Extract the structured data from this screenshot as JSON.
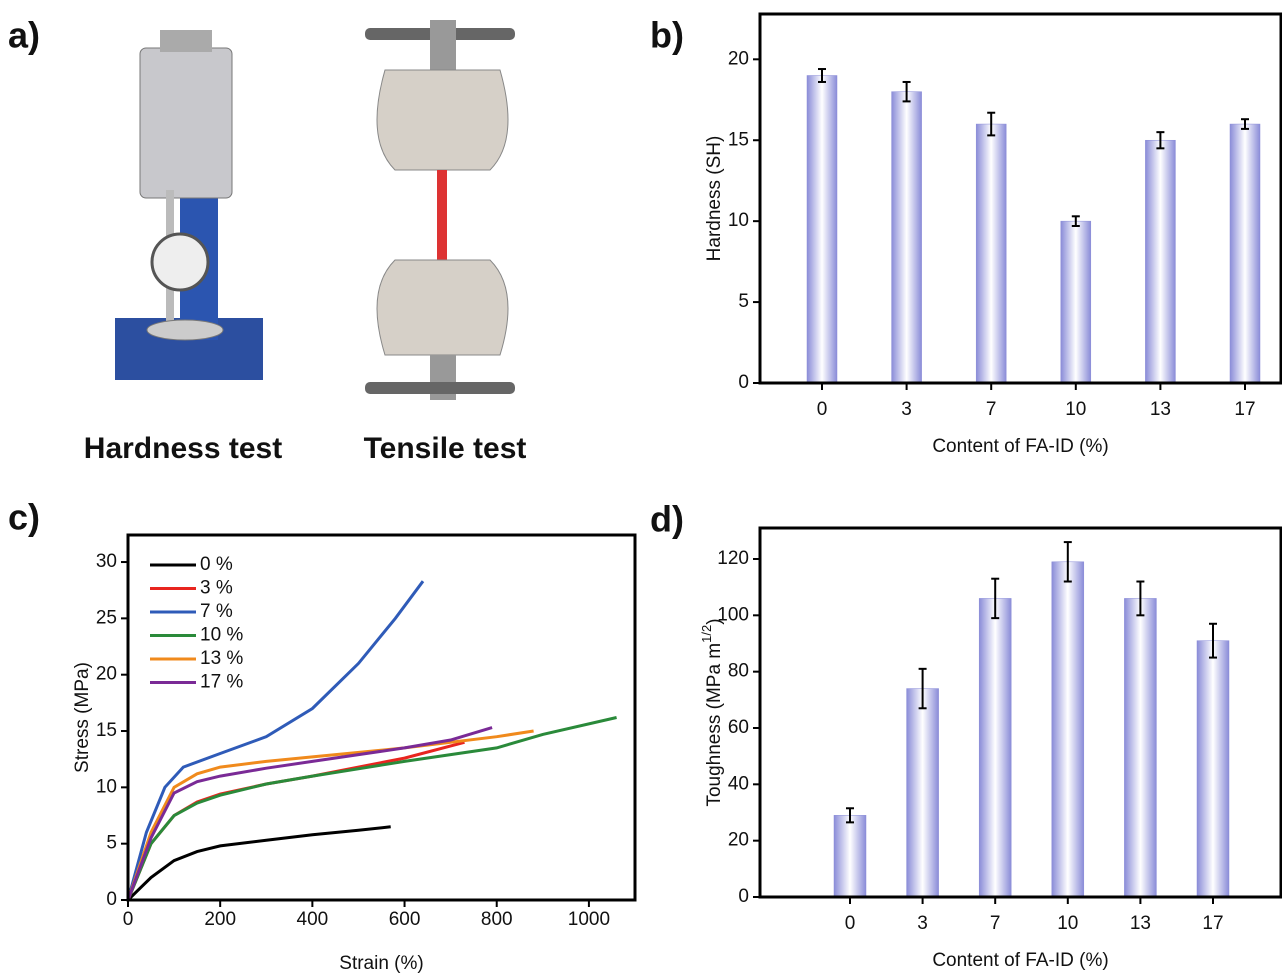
{
  "panel_a": {
    "label": "a)",
    "captions": [
      "Hardness test",
      "Tensile test"
    ]
  },
  "chart_data": [
    {
      "type": "bar",
      "label": "b)",
      "categories": [
        "0",
        "3",
        "7",
        "10",
        "13",
        "17"
      ],
      "values": [
        19,
        18,
        16,
        10,
        15,
        16
      ],
      "errors": [
        0.4,
        0.6,
        0.7,
        0.3,
        0.5,
        0.3
      ],
      "color": "#8a8cd8",
      "ylim": [
        0,
        22.8
      ],
      "yticks": [
        0,
        5,
        10,
        15,
        20
      ],
      "xlabel": "Content of FA-ID (%)",
      "ylabel": "Hardness (SH)"
    },
    {
      "type": "line",
      "label": "c)",
      "xlim": [
        0,
        1100
      ],
      "ylim": [
        0,
        32.4
      ],
      "xticks": [
        0,
        200,
        400,
        600,
        800,
        1000
      ],
      "yticks": [
        0,
        5,
        10,
        15,
        20,
        25,
        30
      ],
      "xlabel": "Strain (%)",
      "ylabel": "Stress (MPa)",
      "legend": "upper left",
      "series": [
        {
          "name": "0 %",
          "color": "#000000",
          "x": [
            0,
            50,
            100,
            150,
            200,
            300,
            400,
            500,
            570
          ],
          "values": [
            0,
            2,
            3.5,
            4.3,
            4.8,
            5.3,
            5.8,
            6.2,
            6.5
          ]
        },
        {
          "name": "3 %",
          "color": "#e8251f",
          "x": [
            0,
            50,
            100,
            150,
            200,
            300,
            400,
            500,
            600,
            730
          ],
          "values": [
            0,
            5,
            7.5,
            8.7,
            9.4,
            10.3,
            11,
            11.8,
            12.6,
            14
          ]
        },
        {
          "name": "7 %",
          "color": "#2f5bb8",
          "x": [
            0,
            40,
            80,
            120,
            200,
            300,
            400,
            500,
            580,
            640
          ],
          "values": [
            0,
            6,
            10,
            11.8,
            13,
            14.5,
            17,
            21,
            25,
            28.3
          ]
        },
        {
          "name": "10 %",
          "color": "#2a8a3a",
          "x": [
            0,
            50,
            100,
            150,
            200,
            300,
            400,
            600,
            800,
            900,
            1060
          ],
          "values": [
            0,
            5,
            7.5,
            8.6,
            9.3,
            10.3,
            11,
            12.3,
            13.5,
            14.7,
            16.2
          ]
        },
        {
          "name": "13 %",
          "color": "#f08a1c",
          "x": [
            0,
            50,
            100,
            150,
            200,
            300,
            400,
            600,
            800,
            880
          ],
          "values": [
            0,
            6,
            10,
            11.2,
            11.8,
            12.3,
            12.7,
            13.5,
            14.5,
            15
          ]
        },
        {
          "name": "17 %",
          "color": "#7a2a96",
          "x": [
            0,
            50,
            100,
            150,
            200,
            300,
            400,
            600,
            700,
            790
          ],
          "values": [
            0,
            5.5,
            9.5,
            10.5,
            11,
            11.7,
            12.3,
            13.5,
            14.2,
            15.3
          ]
        }
      ]
    },
    {
      "type": "bar",
      "label": "d)",
      "categories": [
        "0",
        "3",
        "7",
        "10",
        "13",
        "17"
      ],
      "values": [
        29,
        74,
        106,
        119,
        106,
        91
      ],
      "errors": [
        2.5,
        7,
        7,
        7,
        6,
        6
      ],
      "color": "#8a8cd8",
      "ylim": [
        0,
        131
      ],
      "yticks": [
        0,
        20,
        40,
        60,
        80,
        100,
        120
      ],
      "xlabel": "Content of FA-ID (%)",
      "ylabel": "Toughness (MPa m",
      "ylabel_sup": "1/2",
      "ylabel_end": ")"
    }
  ]
}
